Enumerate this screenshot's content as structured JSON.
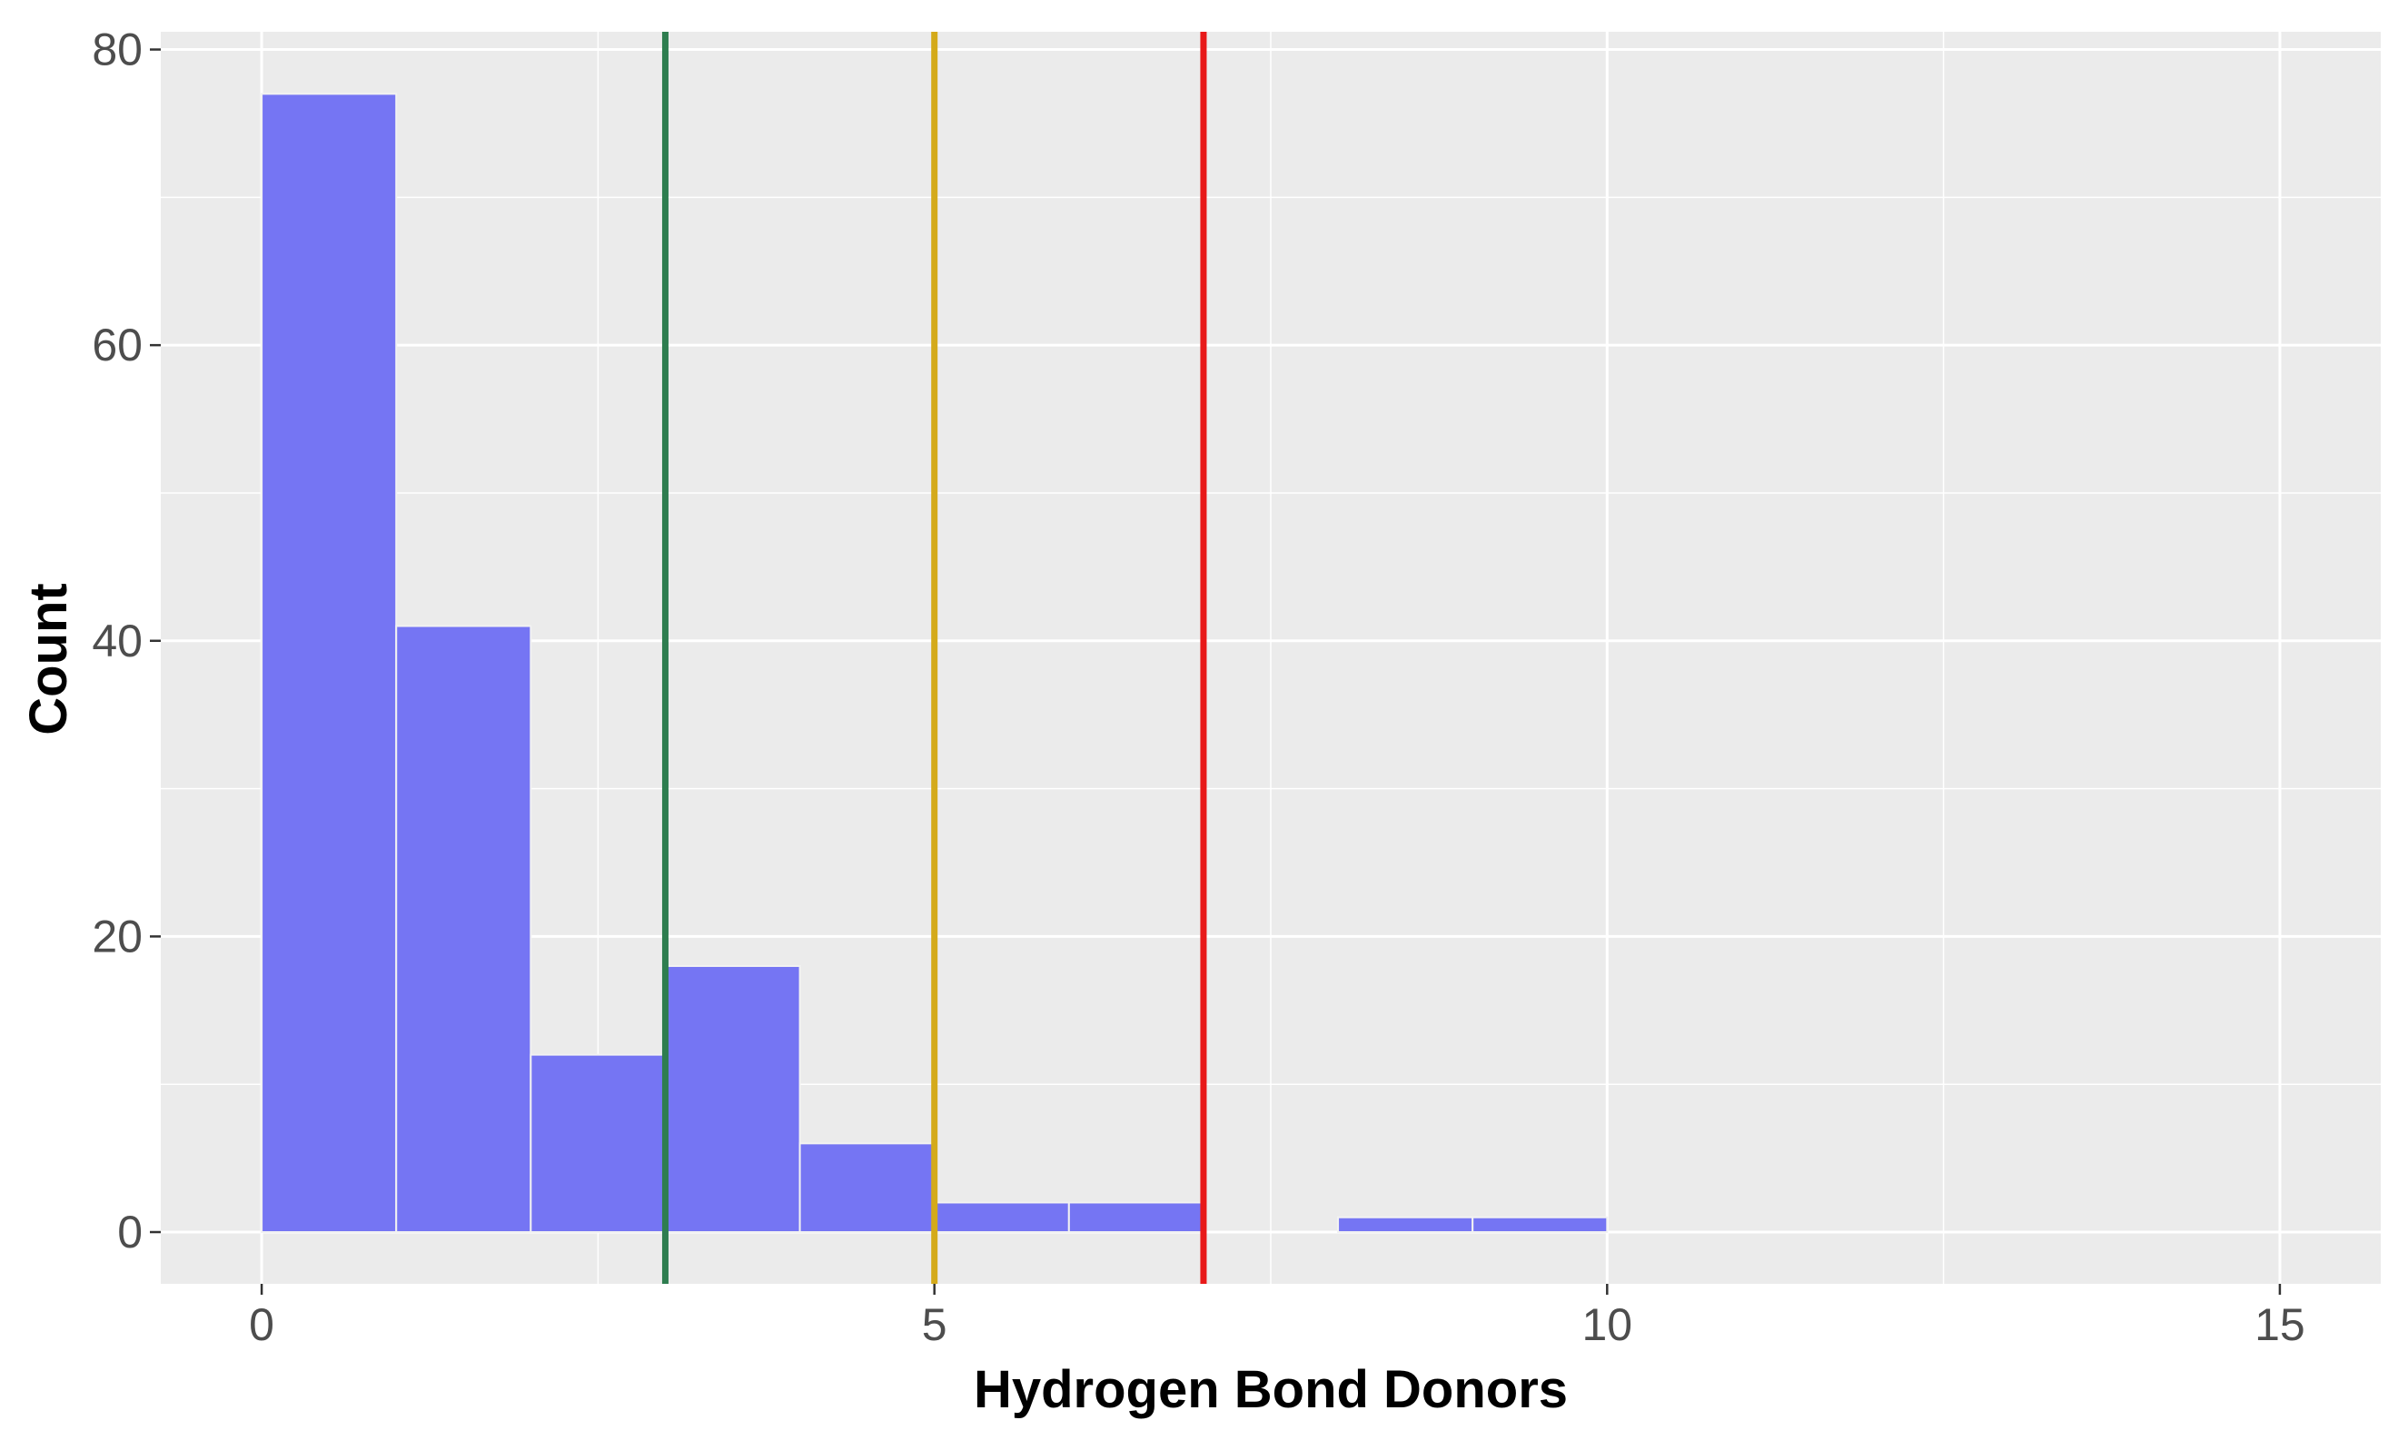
{
  "chart_data": {
    "type": "bar",
    "title": "",
    "xlabel": "Hydrogen Bond Donors",
    "ylabel": "Count",
    "xlim": [
      -0.75,
      15.75
    ],
    "ylim": [
      -3.5,
      81.2
    ],
    "x_ticks": [
      0,
      5,
      10,
      15
    ],
    "x_tick_labels": [
      "0",
      "5",
      "10",
      "15"
    ],
    "y_ticks": [
      0,
      20,
      40,
      60,
      80
    ],
    "y_tick_labels": [
      "0",
      "20",
      "40",
      "60",
      "80"
    ],
    "grid": true,
    "bins": [
      {
        "x_start": 0,
        "x_end": 1,
        "count": 77
      },
      {
        "x_start": 1,
        "x_end": 2,
        "count": 41
      },
      {
        "x_start": 2,
        "x_end": 3,
        "count": 12
      },
      {
        "x_start": 3,
        "x_end": 4,
        "count": 18
      },
      {
        "x_start": 4,
        "x_end": 5,
        "count": 6
      },
      {
        "x_start": 5,
        "x_end": 6,
        "count": 2
      },
      {
        "x_start": 6,
        "x_end": 7,
        "count": 2
      },
      {
        "x_start": 7,
        "x_end": 8,
        "count": 0
      },
      {
        "x_start": 8,
        "x_end": 9,
        "count": 1
      },
      {
        "x_start": 9,
        "x_end": 10,
        "count": 1
      }
    ],
    "vlines": [
      {
        "x": 3,
        "color": "#2e7d4f"
      },
      {
        "x": 5,
        "color": "#d4aa1a"
      },
      {
        "x": 7,
        "color": "#e81919"
      }
    ],
    "colors": {
      "bar_fill": "#7575f3",
      "bar_stroke": "#f2f2f2",
      "panel_background": "#ebebeb",
      "grid": "#ffffff"
    }
  }
}
